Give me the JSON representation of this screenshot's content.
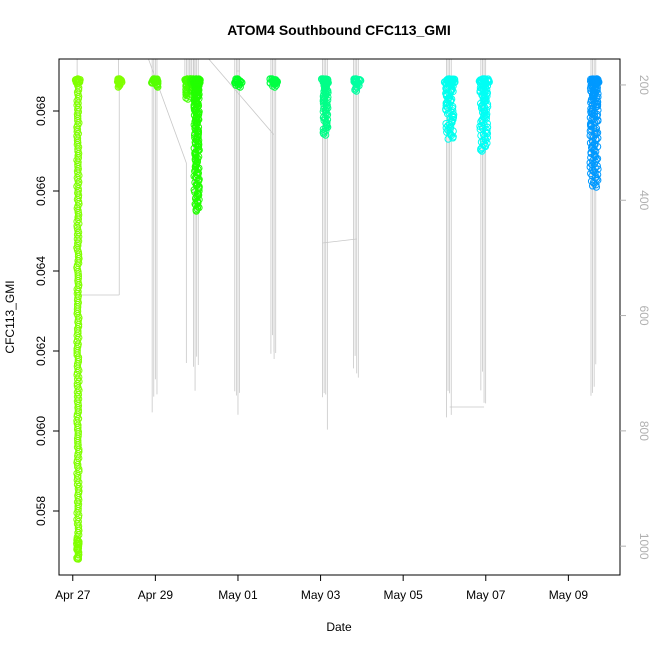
{
  "chart_data": {
    "type": "scatter",
    "title": "ATOM4 Southbound CFC113_GMI",
    "xlabel": "Date",
    "ylabel": "CFC113_GMI",
    "x_ticks": [
      "Apr 27",
      "Apr 29",
      "May 01",
      "May 03",
      "May 05",
      "May 07",
      "May 09"
    ],
    "y_ticks": [
      "0.058",
      "0.060",
      "0.062",
      "0.064",
      "0.066",
      "0.068"
    ],
    "y2_ticks": [
      "200",
      "400",
      "600",
      "800",
      "1000"
    ],
    "xlim": [
      "2018-04-26T16:00",
      "2018-05-10T06:00"
    ],
    "ylim": [
      0.0564,
      0.0693
    ],
    "y2lim": [
      1050,
      155
    ],
    "y2_color": "#b0b0b0",
    "grid": false,
    "pressure_trace_color": "#c8c8c8",
    "profiles": [
      {
        "time": "2018-04-27T03:00",
        "y_min": 0.0568,
        "y_max": 0.0688,
        "color": "#80ff00"
      },
      {
        "time": "2018-04-28T03:00",
        "y_min": 0.0686,
        "y_max": 0.0688,
        "color": "#80ff00"
      },
      {
        "time": "2018-04-29T00:00",
        "y_min": 0.0686,
        "y_max": 0.0688,
        "color": "#55ff00"
      },
      {
        "time": "2018-04-29T19:00",
        "y_min": 0.0683,
        "y_max": 0.0688,
        "color": "#44ff00"
      },
      {
        "time": "2018-04-29T22:00",
        "y_min": 0.0685,
        "y_max": 0.0688,
        "color": "#33ff00"
      },
      {
        "time": "2018-04-30T00:00",
        "y_min": 0.0655,
        "y_max": 0.0688,
        "color": "#22ff00"
      },
      {
        "time": "2018-05-01T00:00",
        "y_min": 0.0686,
        "y_max": 0.0688,
        "color": "#00ff22"
      },
      {
        "time": "2018-05-01T21:00",
        "y_min": 0.0686,
        "y_max": 0.0688,
        "color": "#00ff44"
      },
      {
        "time": "2018-05-03T03:00",
        "y_min": 0.0674,
        "y_max": 0.0688,
        "color": "#00ff88"
      },
      {
        "time": "2018-05-03T21:00",
        "y_min": 0.0685,
        "y_max": 0.0688,
        "color": "#00ffa0"
      },
      {
        "time": "2018-05-06T03:00",
        "y_min": 0.0673,
        "y_max": 0.0688,
        "color": "#00ffee"
      },
      {
        "time": "2018-05-06T23:00",
        "y_min": 0.067,
        "y_max": 0.0688,
        "color": "#00fff5"
      },
      {
        "time": "2018-05-09T15:00",
        "y_min": 0.0661,
        "y_max": 0.0688,
        "color": "#0099ff"
      }
    ]
  }
}
